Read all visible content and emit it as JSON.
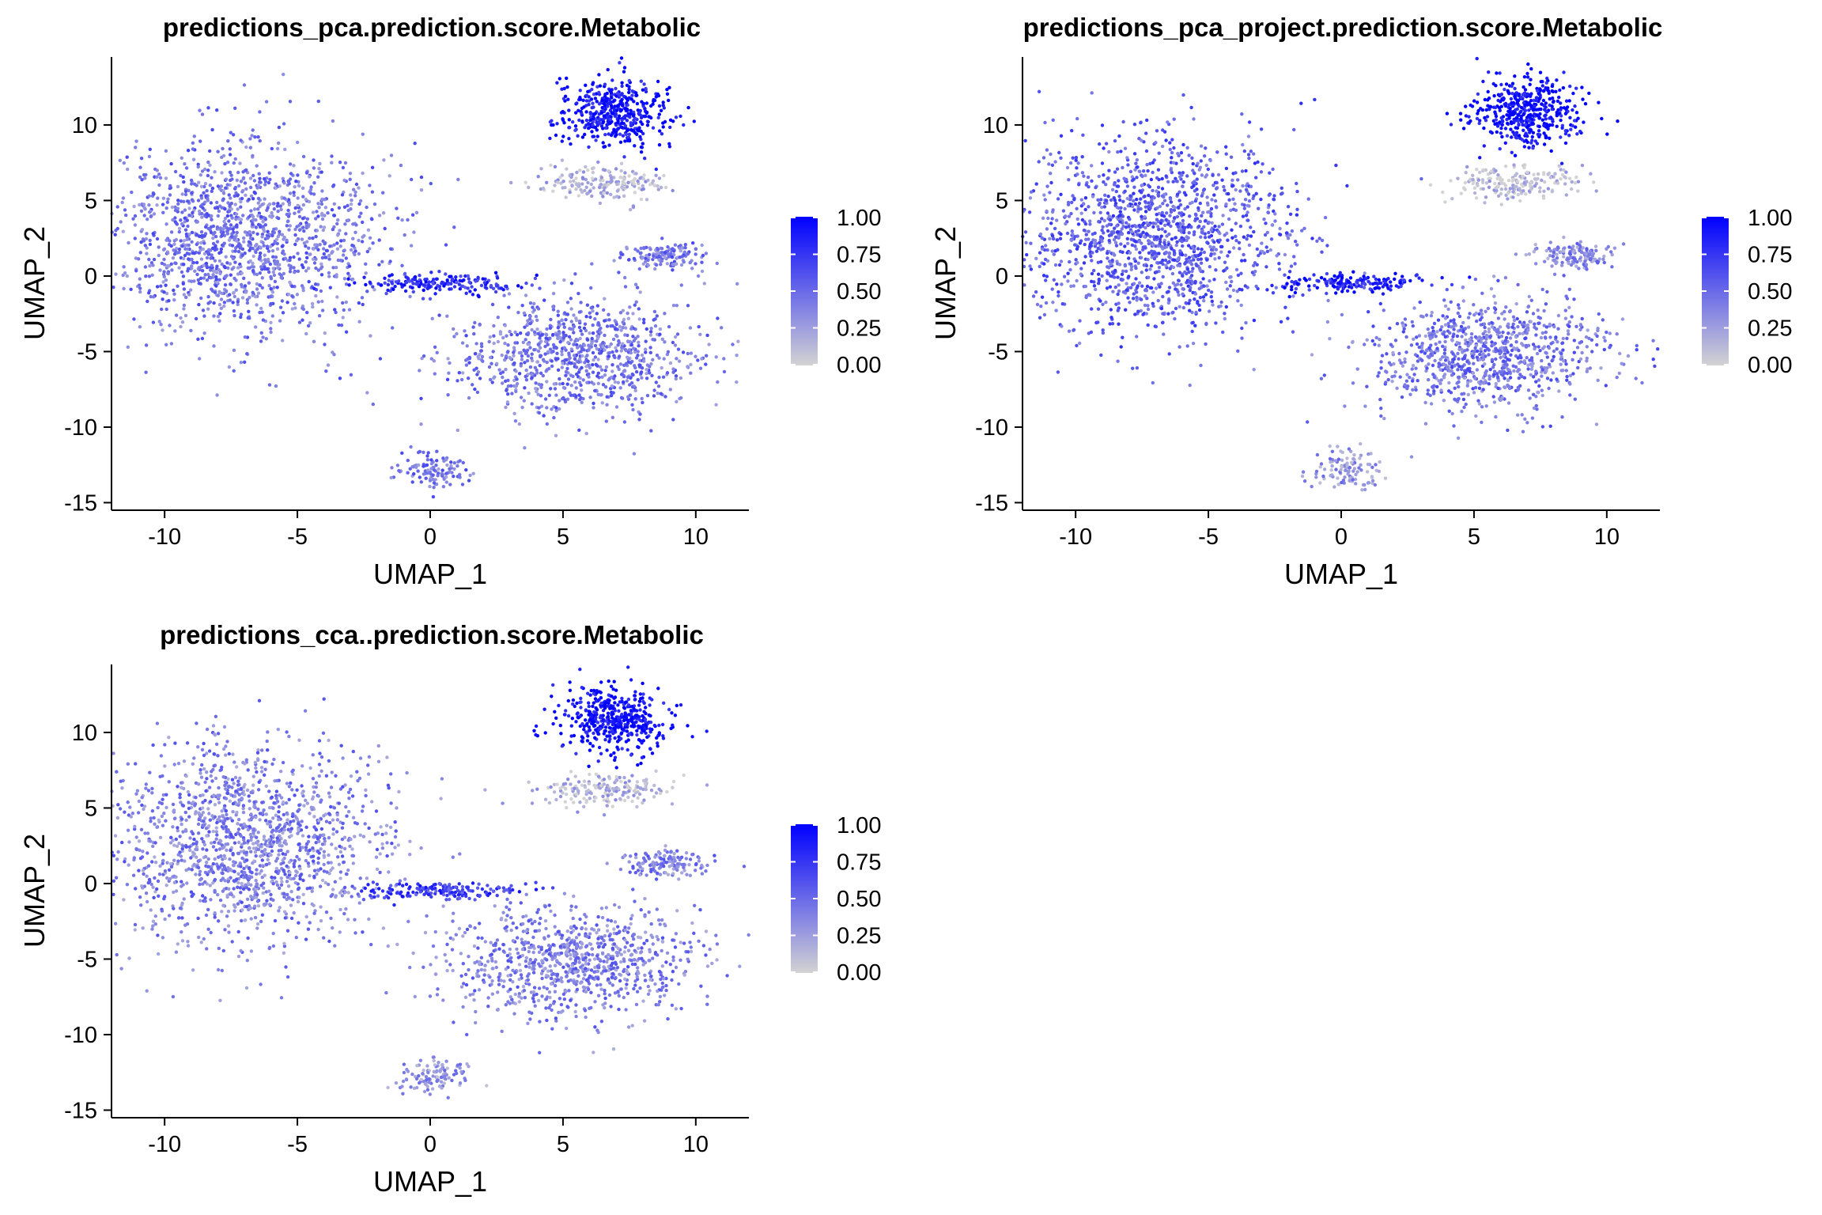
{
  "chart_data": [
    {
      "type": "scatter",
      "title": "predictions_pca.prediction.score.Metabolic",
      "xlabel": "UMAP_1",
      "ylabel": "UMAP_2",
      "xlim": [
        -12,
        12
      ],
      "ylim": [
        -15.5,
        14.5
      ],
      "x_ticks": [
        -10,
        -5,
        0,
        5,
        10
      ],
      "y_ticks": [
        -15,
        -10,
        -5,
        0,
        5,
        10
      ],
      "grid": false,
      "legend": {
        "position": "right",
        "type": "colorbar",
        "ticks": [
          "0.00",
          "0.25",
          "0.50",
          "0.75",
          "1.00"
        ],
        "low_color": "#d3d3d3",
        "high_color": "#0000ff"
      },
      "color_variable": "prediction.score.Metabolic",
      "scores": {
        "main_cluster": 0.45,
        "center_blob": 0.45,
        "top_right_upper": 0.92,
        "top_right_lower": 0.15,
        "right_small": 0.45,
        "streak": 0.8,
        "bottom": 0.45
      }
    },
    {
      "type": "scatter",
      "title": "predictions_pca_project.prediction.score.Metabolic",
      "xlabel": "UMAP_1",
      "ylabel": "UMAP_2",
      "xlim": [
        -12,
        12
      ],
      "ylim": [
        -15.5,
        14.5
      ],
      "x_ticks": [
        -10,
        -5,
        0,
        5,
        10
      ],
      "y_ticks": [
        -15,
        -10,
        -5,
        0,
        5,
        10
      ],
      "grid": false,
      "legend": {
        "position": "right",
        "type": "colorbar",
        "ticks": [
          "0.00",
          "0.25",
          "0.50",
          "0.75",
          "1.00"
        ],
        "low_color": "#d3d3d3",
        "high_color": "#0000ff"
      },
      "color_variable": "prediction.score.Metabolic",
      "scores": {
        "main_cluster": 0.55,
        "center_blob": 0.45,
        "top_right_upper": 0.95,
        "top_right_lower": 0.1,
        "right_small": 0.35,
        "streak": 0.85,
        "bottom": 0.3
      }
    },
    {
      "type": "scatter",
      "title": "predictions_cca..prediction.score.Metabolic",
      "xlabel": "UMAP_1",
      "ylabel": "UMAP_2",
      "xlim": [
        -12,
        12
      ],
      "ylim": [
        -15.5,
        14.5
      ],
      "x_ticks": [
        -10,
        -5,
        0,
        5,
        10
      ],
      "y_ticks": [
        -15,
        -10,
        -5,
        0,
        5,
        10
      ],
      "grid": false,
      "legend": {
        "position": "right",
        "type": "colorbar",
        "ticks": [
          "0.00",
          "0.25",
          "0.50",
          "0.75",
          "1.00"
        ],
        "low_color": "#d3d3d3",
        "high_color": "#0000ff"
      },
      "color_variable": "prediction.score.Metabolic",
      "scores": {
        "main_cluster": 0.4,
        "center_blob": 0.4,
        "top_right_upper": 0.95,
        "top_right_lower": 0.15,
        "right_small": 0.4,
        "streak": 0.7,
        "bottom": 0.3
      }
    }
  ],
  "umap_clusters": [
    {
      "name": "main_cluster",
      "cx": -7,
      "cy": 2.5,
      "sx": 2.6,
      "sy": 3.2,
      "n": 1500
    },
    {
      "name": "center_blob",
      "cx": 5.5,
      "cy": -5.2,
      "sx": 2.4,
      "sy": 1.9,
      "n": 900
    },
    {
      "name": "top_right_upper",
      "cx": 7,
      "cy": 10.8,
      "sx": 1.0,
      "sy": 1.1,
      "n": 450
    },
    {
      "name": "top_right_lower",
      "cx": 6.6,
      "cy": 6.2,
      "sx": 1.2,
      "sy": 0.55,
      "n": 180
    },
    {
      "name": "right_small",
      "cx": 8.8,
      "cy": 1.3,
      "sx": 0.75,
      "sy": 0.45,
      "n": 140
    },
    {
      "name": "streak",
      "cx": 0.5,
      "cy": -0.5,
      "sx": 1.5,
      "sy": 0.3,
      "n": 170
    },
    {
      "name": "bottom",
      "cx": 0.2,
      "cy": -12.8,
      "sx": 0.7,
      "sy": 0.6,
      "n": 110
    }
  ]
}
